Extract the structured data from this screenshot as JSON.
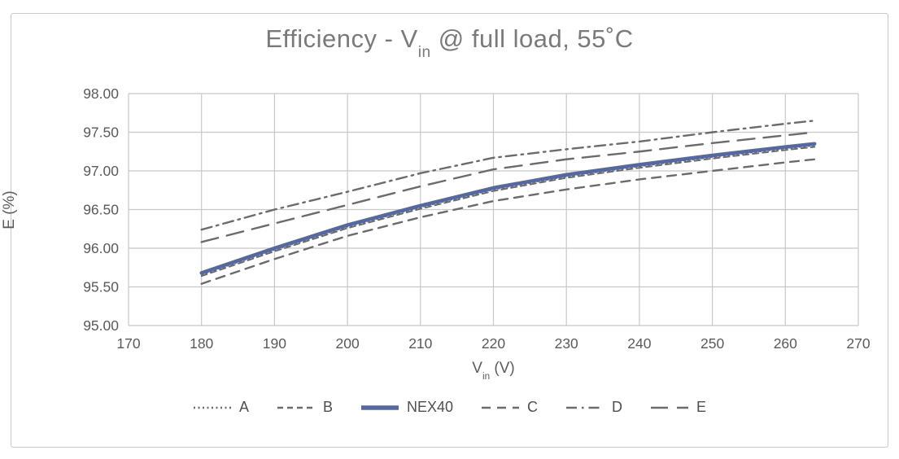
{
  "chart_data": {
    "type": "line",
    "title": {
      "prefix": "Efficiency - V",
      "subscript": "in",
      "suffix": " @ full load, 55˚C"
    },
    "xlabel": {
      "prefix": "V",
      "subscript": "in",
      "suffix": " (V)"
    },
    "ylabel": "E (%)",
    "xlim": [
      170,
      270
    ],
    "ylim": [
      95.0,
      98.0
    ],
    "x_ticks": [
      170,
      180,
      190,
      200,
      210,
      220,
      230,
      240,
      250,
      260,
      270
    ],
    "y_ticks": [
      95.0,
      95.5,
      96.0,
      96.5,
      97.0,
      97.5,
      98.0
    ],
    "grid": true,
    "legend_position": "bottom",
    "x": [
      180,
      190,
      200,
      210,
      220,
      230,
      240,
      250,
      260,
      264
    ],
    "series": [
      {
        "name": "A",
        "dash": "dotted",
        "color": "#6b6b6b",
        "width": 2,
        "values": [
          95.66,
          95.98,
          96.28,
          96.53,
          96.76,
          96.93,
          97.06,
          97.18,
          97.29,
          97.33
        ]
      },
      {
        "name": "B",
        "dash": "shortdash",
        "color": "#6b6b6b",
        "width": 2,
        "values": [
          95.64,
          95.96,
          96.26,
          96.51,
          96.74,
          96.91,
          97.04,
          97.16,
          97.27,
          97.31
        ]
      },
      {
        "name": "NEX40",
        "dash": "solid",
        "color": "#5569a0",
        "width": 4.5,
        "values": [
          95.68,
          96.0,
          96.3,
          96.55,
          96.78,
          96.95,
          97.08,
          97.2,
          97.31,
          97.35
        ]
      },
      {
        "name": "C",
        "dash": "dash",
        "color": "#6b6b6b",
        "width": 2.4,
        "values": [
          95.54,
          95.86,
          96.16,
          96.4,
          96.61,
          96.76,
          96.89,
          97.0,
          97.11,
          97.15
        ]
      },
      {
        "name": "D",
        "dash": "dashdot",
        "color": "#6b6b6b",
        "width": 2.4,
        "values": [
          96.24,
          96.5,
          96.73,
          96.97,
          97.17,
          97.28,
          97.38,
          97.5,
          97.61,
          97.65
        ]
      },
      {
        "name": "E",
        "dash": "longdash",
        "color": "#6b6b6b",
        "width": 2.4,
        "values": [
          96.08,
          96.32,
          96.56,
          96.8,
          97.02,
          97.15,
          97.25,
          97.36,
          97.46,
          97.5
        ]
      }
    ]
  },
  "style": {
    "gridline_color": "#c8c8c8",
    "tick_label_color": "#5a5a5a",
    "title_color": "#7a7a7a",
    "accent_blue": "#5569a0"
  }
}
